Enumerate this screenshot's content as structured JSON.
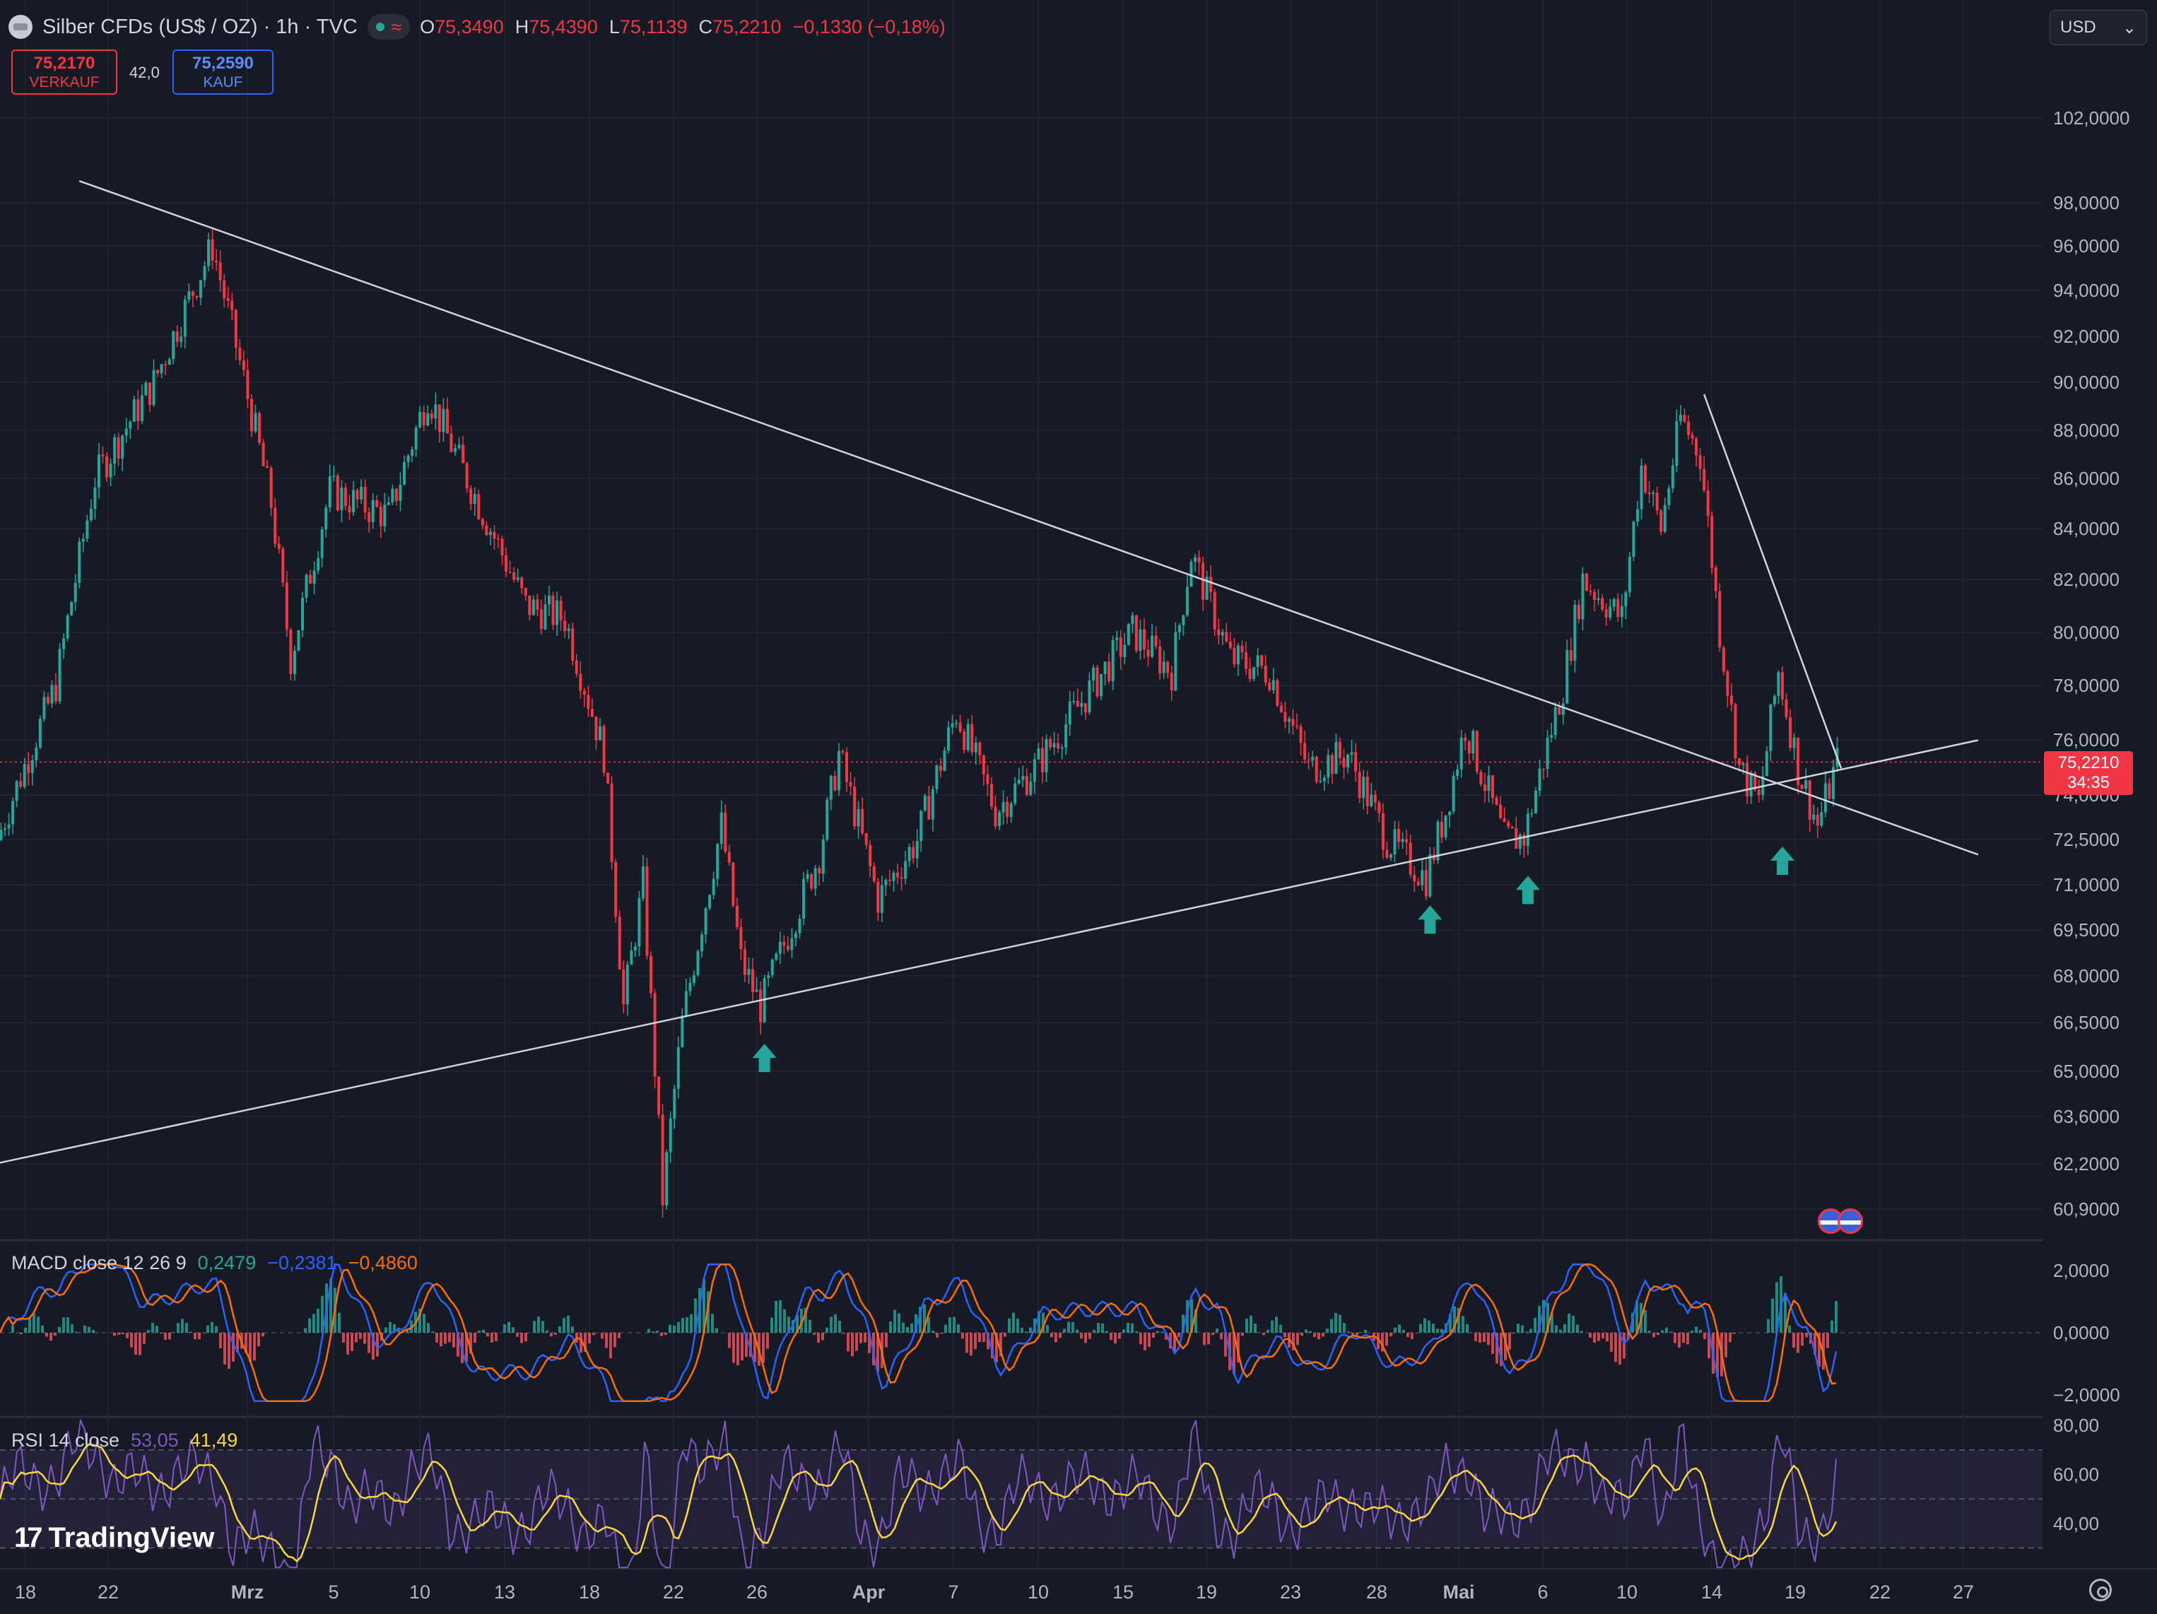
{
  "header": {
    "symbol_title": "Silber CFDs (US$ / OZ) · 1h · TVC",
    "status_icon": "wave-icon",
    "ohlc": [
      {
        "key": "O",
        "value": "75,3490"
      },
      {
        "key": "H",
        "value": "75,4390"
      },
      {
        "key": "L",
        "value": "75,1139"
      },
      {
        "key": "C",
        "value": "75,2210"
      },
      {
        "key": "",
        "value": "−0,1330 (−0,18%)"
      }
    ]
  },
  "trade": {
    "sell_price": "75,2170",
    "sell_label": "VERKAUF",
    "spread": "42,0",
    "buy_price": "75,2590",
    "buy_label": "KAUF"
  },
  "currency": {
    "value": "USD",
    "icon": "chevron-down-icon"
  },
  "last_price": {
    "value": "75,2210",
    "countdown": "34:35"
  },
  "macd_legend": {
    "name": "MACD close 12 26 9",
    "hist": "0,2479",
    "macd": "−0,2381",
    "signal": "−0,4860"
  },
  "rsi_legend": {
    "name": "RSI 14 close",
    "rsi": "53,05",
    "ma": "41,49"
  },
  "brand": "TradingView",
  "colors": {
    "background": "#161a25",
    "up": "#26a69a",
    "down": "#f23645",
    "macd": "#2962ff",
    "signal": "#ff6d00",
    "rsi": "#7e57c2",
    "rsi_ma": "#fdd835",
    "trendline": "#d1d4dc",
    "arrow": "#26a69a"
  },
  "chart_data": [
    {
      "type": "candlestick",
      "title": "Silber CFDs (US$ / OZ) · 1h · TVC",
      "y_scale": "log",
      "y_ticks": [
        "102,0000",
        "98,0000",
        "96,0000",
        "94,0000",
        "92,0000",
        "90,0000",
        "88,0000",
        "86,0000",
        "84,0000",
        "82,0000",
        "80,0000",
        "78,0000",
        "76,0000",
        "74,0000",
        "72,5000",
        "71,0000",
        "69,5000",
        "68,0000",
        "66,5000",
        "65,0000",
        "63,6000",
        "62,2000",
        "60,9000"
      ],
      "x_ticks": [
        "18",
        "22",
        "Mrz",
        "5",
        "10",
        "13",
        "18",
        "22",
        "26",
        "Apr",
        "7",
        "10",
        "15",
        "19",
        "23",
        "28",
        "Mai",
        "6",
        "10",
        "14",
        "19",
        "22",
        "27"
      ],
      "approx_close_path": [
        {
          "date": "Feb 17",
          "close": 72.5
        },
        {
          "date": "Feb 20",
          "close": 78.0
        },
        {
          "date": "Feb 22",
          "close": 86.0
        },
        {
          "date": "Feb 25",
          "close": 90.0
        },
        {
          "date": "Feb 28",
          "close": 96.0
        },
        {
          "date": "Mar 2",
          "close": 85.0
        },
        {
          "date": "Mar 3",
          "close": 79.0
        },
        {
          "date": "Mar 5",
          "close": 85.5
        },
        {
          "date": "Mar 8",
          "close": 84.5
        },
        {
          "date": "Mar 10",
          "close": 89.5
        },
        {
          "date": "Mar 12",
          "close": 86.0
        },
        {
          "date": "Mar 15",
          "close": 81.0
        },
        {
          "date": "Mar 17",
          "close": 80.5
        },
        {
          "date": "Mar 19",
          "close": 75.5
        },
        {
          "date": "Mar 20",
          "close": 67.0
        },
        {
          "date": "Mar 21",
          "close": 71.0
        },
        {
          "date": "Mar 22",
          "close": 61.2
        },
        {
          "date": "Mar 23",
          "close": 66.5
        },
        {
          "date": "Mar 25",
          "close": 73.0
        },
        {
          "date": "Mar 26",
          "close": 68.5
        },
        {
          "date": "Mar 27",
          "close": 67.0
        },
        {
          "date": "Mar 30",
          "close": 72.0
        },
        {
          "date": "Mar 31",
          "close": 75.5
        },
        {
          "date": "Apr 2",
          "close": 70.5
        },
        {
          "date": "Apr 4",
          "close": 72.5
        },
        {
          "date": "Apr 6",
          "close": 77.0
        },
        {
          "date": "Apr 8",
          "close": 73.5
        },
        {
          "date": "Apr 10",
          "close": 75.0
        },
        {
          "date": "Apr 13",
          "close": 78.0
        },
        {
          "date": "Apr 15",
          "close": 80.0
        },
        {
          "date": "Apr 17",
          "close": 78.5
        },
        {
          "date": "Apr 18",
          "close": 83.0
        },
        {
          "date": "Apr 20",
          "close": 79.0
        },
        {
          "date": "Apr 22",
          "close": 78.5
        },
        {
          "date": "Apr 24",
          "close": 75.0
        },
        {
          "date": "Apr 26",
          "close": 75.5
        },
        {
          "date": "Apr 28",
          "close": 72.5
        },
        {
          "date": "Apr 30",
          "close": 71.2
        },
        {
          "date": "May 1",
          "close": 73.5
        },
        {
          "date": "May 2",
          "close": 76.5
        },
        {
          "date": "May 4",
          "close": 72.5
        },
        {
          "date": "May 5",
          "close": 72.6
        },
        {
          "date": "May 7",
          "close": 78.0
        },
        {
          "date": "May 8",
          "close": 82.0
        },
        {
          "date": "May 10",
          "close": 80.5
        },
        {
          "date": "May 11",
          "close": 86.5
        },
        {
          "date": "May 12",
          "close": 84.0
        },
        {
          "date": "May 13",
          "close": 88.5
        },
        {
          "date": "May 14",
          "close": 87.0
        },
        {
          "date": "May 15",
          "close": 80.0
        },
        {
          "date": "May 16",
          "close": 75.0
        },
        {
          "date": "May 17",
          "close": 73.8
        },
        {
          "date": "May 18",
          "close": 78.5
        },
        {
          "date": "May 19",
          "close": 75.0
        },
        {
          "date": "May 20",
          "close": 73.0
        },
        {
          "date": "May 21",
          "close": 75.221
        }
      ],
      "trendlines": [
        {
          "name": "resistance",
          "from": {
            "date": "Feb 21",
            "price": 99.0
          },
          "to": {
            "date": "May 28",
            "price": 72.0
          }
        },
        {
          "name": "support",
          "from": {
            "date": "Feb 15",
            "price": 62.0
          },
          "to": {
            "date": "May 28",
            "price": 76.0
          }
        },
        {
          "name": "short resistance",
          "from": {
            "date": "May 14",
            "price": 89.5
          },
          "to": {
            "date": "May 21",
            "price": 75.0
          }
        }
      ],
      "support_touches": [
        {
          "date": "Mar 27",
          "price": 66.5
        },
        {
          "date": "Apr 30",
          "price": 71.0
        },
        {
          "date": "May 5",
          "price": 72.0
        },
        {
          "date": "May 18",
          "price": 73.0
        }
      ],
      "last_price": 75.221
    },
    {
      "type": "line",
      "title": "MACD close 12 26 9",
      "y_ticks": [
        "2,0000",
        "0,0000",
        "−2,0000"
      ],
      "series": [
        {
          "name": "MACD",
          "last": -0.2381
        },
        {
          "name": "Signal",
          "last": -0.486
        },
        {
          "name": "Histogram",
          "last": 0.2479
        }
      ]
    },
    {
      "type": "line",
      "title": "RSI 14 close",
      "y_ticks": [
        "80,00",
        "60,00",
        "40,00"
      ],
      "bands": [
        70,
        50,
        30
      ],
      "series": [
        {
          "name": "RSI",
          "last": 53.05
        },
        {
          "name": "RSI MA",
          "last": 41.49
        }
      ]
    }
  ]
}
